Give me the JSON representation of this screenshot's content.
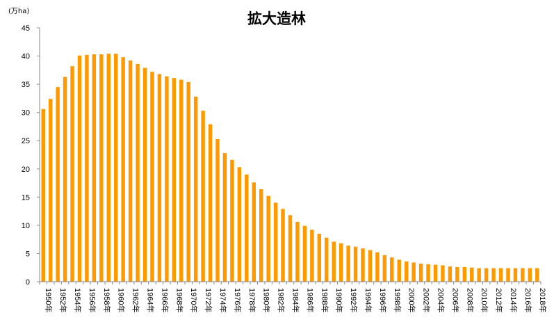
{
  "chart_data": {
    "type": "bar",
    "title": "拡大造林",
    "ylabel": "(万ha)",
    "xlabel": "",
    "ylim": [
      0,
      45
    ],
    "yticks": [
      0,
      5,
      10,
      15,
      20,
      25,
      30,
      35,
      40,
      45
    ],
    "grid": false,
    "bar_color": "#FF9900",
    "categories": [
      "1950年",
      "1951年",
      "1952年",
      "1953年",
      "1954年",
      "1955年",
      "1956年",
      "1957年",
      "1958年",
      "1959年",
      "1960年",
      "1961年",
      "1962年",
      "1963年",
      "1964年",
      "1965年",
      "1966年",
      "1967年",
      "1968年",
      "1969年",
      "1970年",
      "1971年",
      "1972年",
      "1973年",
      "1974年",
      "1975年",
      "1976年",
      "1977年",
      "1978年",
      "1979年",
      "1980年",
      "1981年",
      "1982年",
      "1983年",
      "1984年",
      "1985年",
      "1986年",
      "1987年",
      "1988年",
      "1989年",
      "1990年",
      "1991年",
      "1992年",
      "1993年",
      "1994年",
      "1995年",
      "1996年",
      "1997年",
      "1998年",
      "1999年",
      "2000年",
      "2001年",
      "2002年",
      "2003年",
      "2004年",
      "2005年",
      "2006年",
      "2007年",
      "2008年",
      "2009年",
      "2010年",
      "2011年",
      "2012年",
      "2013年",
      "2014年",
      "2015年",
      "2016年",
      "2017年",
      "2018年"
    ],
    "tick_labels": [
      "1950年",
      "1952年",
      "1954年",
      "1956年",
      "1958年",
      "1960年",
      "1962年",
      "1964年",
      "1966年",
      "1968年",
      "1970年",
      "1972年",
      "1974年",
      "1976年",
      "1978年",
      "1980年",
      "1982年",
      "1984年",
      "1986年",
      "1988年",
      "1990年",
      "1992年",
      "1994年",
      "1996年",
      "1998年",
      "2000年",
      "2002年",
      "2004年",
      "2006年",
      "2008年",
      "2010年",
      "2012年",
      "2014年",
      "2016年",
      "2018年"
    ],
    "values": [
      30.6,
      32.4,
      34.5,
      36.3,
      38.2,
      40.1,
      40.2,
      40.3,
      40.3,
      40.4,
      40.4,
      39.8,
      39.2,
      38.6,
      37.9,
      37.2,
      36.8,
      36.4,
      36.1,
      35.8,
      35.4,
      32.8,
      30.3,
      27.9,
      25.3,
      22.8,
      21.6,
      20.3,
      19.0,
      17.6,
      16.4,
      15.2,
      14.0,
      12.9,
      11.8,
      10.6,
      9.9,
      9.2,
      8.5,
      7.8,
      7.1,
      6.8,
      6.4,
      6.2,
      5.9,
      5.6,
      5.2,
      4.7,
      4.3,
      3.9,
      3.6,
      3.4,
      3.2,
      3.1,
      3.0,
      2.9,
      2.7,
      2.6,
      2.6,
      2.5,
      2.4,
      2.4,
      2.4,
      2.4,
      2.4,
      2.4,
      2.4,
      2.4,
      2.4
    ]
  }
}
